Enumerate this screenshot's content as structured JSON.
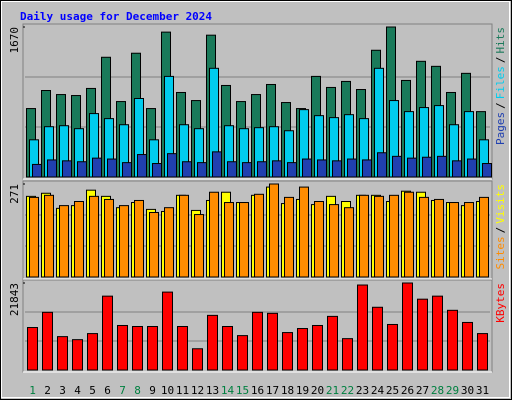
{
  "title": "Daily usage for December 2024",
  "legend_separator": "/",
  "chart_data": [
    {
      "type": "bar",
      "ylim": [
        0,
        1670
      ],
      "yticks": [
        1670
      ],
      "series": [
        {
          "name": "Pages",
          "color": "#2040b0",
          "values": [
            140,
            190,
            180,
            170,
            210,
            200,
            160,
            250,
            150,
            260,
            170,
            160,
            280,
            170,
            160,
            170,
            180,
            160,
            200,
            190,
            180,
            200,
            190,
            270,
            230,
            210,
            220,
            230,
            180,
            200,
            150
          ]
        },
        {
          "name": "Files",
          "color": "#00ccee",
          "values": [
            414,
            560,
            571,
            538,
            706,
            650,
            582,
            874,
            414,
            1120,
            582,
            538,
            1210,
            571,
            538,
            549,
            560,
            515,
            750,
            683,
            661,
            694,
            650,
            1210,
            851,
            728,
            773,
            795,
            582,
            728,
            414
          ]
        },
        {
          "name": "Hits",
          "color": "#1a7a5a",
          "values": [
            762,
            963,
            918,
            907,
            986,
            1333,
            840,
            1378,
            762,
            1613,
            941,
            851,
            1579,
            1019,
            840,
            918,
            1030,
            829,
            762,
            1120,
            997,
            1064,
            974,
            1411,
            1670,
            1075,
            1288,
            1232,
            941,
            1154,
            728
          ]
        }
      ]
    },
    {
      "type": "bar",
      "ylim": [
        0,
        271
      ],
      "yticks": [
        271
      ],
      "series": [
        {
          "name": "Sites",
          "color": "#ff8c00",
          "values": [
            232,
            238,
            208,
            220,
            235,
            226,
            208,
            223,
            188,
            202,
            238,
            182,
            247,
            217,
            217,
            241,
            271,
            232,
            262,
            220,
            211,
            202,
            238,
            235,
            238,
            247,
            232,
            226,
            217,
            217,
            232
          ]
        },
        {
          "name": "Visits",
          "color": "#ffff00",
          "values": [
            235,
            244,
            200,
            208,
            253,
            235,
            202,
            217,
            197,
            191,
            238,
            194,
            223,
            247,
            217,
            238,
            262,
            214,
            226,
            211,
            235,
            220,
            238,
            238,
            220,
            250,
            247,
            223,
            217,
            208,
            220
          ]
        }
      ]
    },
    {
      "type": "bar",
      "ylim": [
        0,
        21843
      ],
      "yticks": [
        21843
      ],
      "categories": [
        "1",
        "2",
        "3",
        "4",
        "5",
        "6",
        "7",
        "8",
        "9",
        "10",
        "11",
        "12",
        "13",
        "14",
        "15",
        "16",
        "17",
        "18",
        "19",
        "20",
        "21",
        "22",
        "23",
        "24",
        "25",
        "26",
        "27",
        "28",
        "29",
        "30",
        "31"
      ],
      "category_colors": [
        "#008040",
        "#000000",
        "#000000",
        "#000000",
        "#000000",
        "#000000",
        "#008040",
        "#008040",
        "#000000",
        "#000000",
        "#000000",
        "#000000",
        "#000000",
        "#008040",
        "#008040",
        "#000000",
        "#000000",
        "#000000",
        "#000000",
        "#000000",
        "#008040",
        "#008040",
        "#000000",
        "#000000",
        "#000000",
        "#000000",
        "#000000",
        "#008040",
        "#008040",
        "#000000",
        "#000000"
      ],
      "series": [
        {
          "name": "KBytes",
          "color": "#ff0000",
          "values": [
            10668,
            14478,
            8382,
            7620,
            9144,
            18542,
            11176,
            10922,
            10922,
            19558,
            10922,
            5334,
            13716,
            10922,
            8636,
            14478,
            14224,
            9398,
            10414,
            11176,
            13462,
            7874,
            21336,
            15748,
            11430,
            21843,
            17780,
            18542,
            14986,
            11938,
            9144
          ]
        }
      ]
    }
  ]
}
